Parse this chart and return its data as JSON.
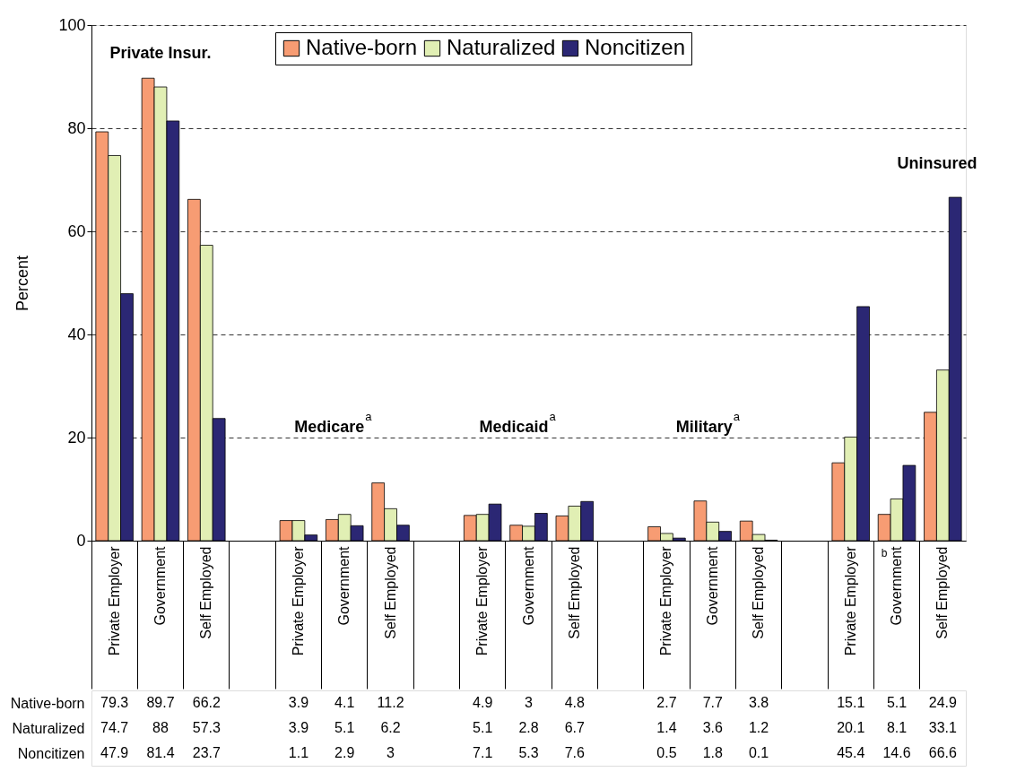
{
  "chart_data": {
    "type": "bar",
    "ylabel": "Percent",
    "categories": [
      "Private Employer",
      "Government",
      "Self Employed",
      null,
      "Private Employer",
      "Government",
      "Self Employed",
      null,
      "Private Employer",
      "Government",
      "Self Employed",
      null,
      "Private Employer",
      "Government",
      "Self Employed",
      null,
      "Private Employer",
      "Government",
      "Self Employed"
    ],
    "series": [
      {
        "name": "Native-born",
        "color": "#f79c73",
        "values": [
          79.3,
          89.7,
          66.2,
          null,
          3.9,
          4.1,
          11.2,
          null,
          4.9,
          3,
          4.8,
          null,
          2.7,
          7.7,
          3.8,
          null,
          15.1,
          5.1,
          24.9
        ]
      },
      {
        "name": "Naturalized",
        "color": "#e1efb4",
        "values": [
          74.7,
          88,
          57.3,
          null,
          3.9,
          5.1,
          6.2,
          null,
          5.1,
          2.8,
          6.7,
          null,
          1.4,
          3.6,
          1.2,
          null,
          20.1,
          8.1,
          33.1
        ]
      },
      {
        "name": "Noncitizen",
        "color": "#2b2774",
        "values": [
          47.9,
          81.4,
          23.7,
          null,
          1.1,
          2.9,
          3,
          null,
          7.1,
          5.3,
          7.6,
          null,
          0.5,
          1.8,
          0.1,
          null,
          45.4,
          14.6,
          66.6
        ]
      }
    ],
    "ylim": [
      0,
      100
    ],
    "yticks": [
      0,
      20,
      40,
      60,
      80,
      100
    ],
    "grid": "y",
    "legend": "top",
    "data_labels": true,
    "annotations": [
      "Private Insur.",
      "Medicare$^{a}$",
      "Medicaid$^{a}$",
      "Military$^{a}$",
      "Uninsured",
      "b"
    ]
  }
}
